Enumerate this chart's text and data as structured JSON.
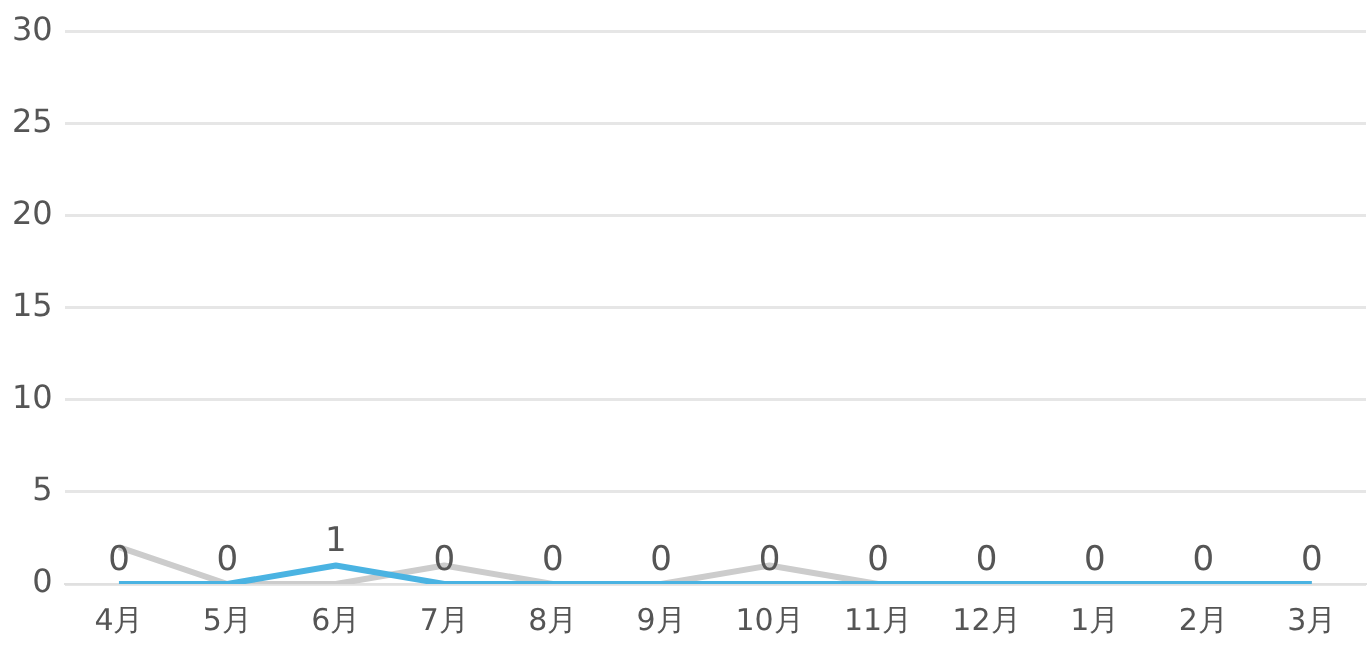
{
  "chart_data": {
    "type": "line",
    "categories": [
      "4月",
      "5月",
      "6月",
      "7月",
      "8月",
      "9月",
      "10月",
      "11月",
      "12月",
      "1月",
      "2月",
      "3月"
    ],
    "series": [
      {
        "color": "#cccccc",
        "values": [
          2,
          0,
          0,
          1,
          0,
          0,
          1,
          0,
          0,
          0,
          0,
          0
        ]
      },
      {
        "color": "#4ab3e2",
        "values": [
          0,
          0,
          1,
          0,
          0,
          0,
          0,
          0,
          0,
          0,
          0,
          0
        ],
        "value_labels": [
          "0",
          "0",
          "1",
          "0",
          "0",
          "0",
          "0",
          "0",
          "0",
          "0",
          "0",
          "0"
        ]
      }
    ],
    "ylim": [
      0,
      30
    ],
    "yticks": [
      0,
      5,
      10,
      15,
      20,
      25,
      30
    ],
    "grid": "y",
    "legend": false,
    "marker": "none"
  }
}
